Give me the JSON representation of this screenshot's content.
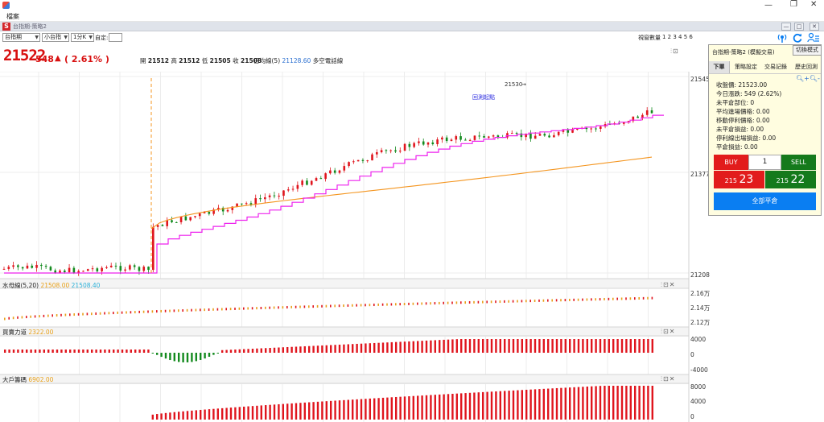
{
  "window": {
    "menu_label": "檔案"
  },
  "inner_window": {
    "title": "台指期-策略2"
  },
  "toolbar": {
    "symbol": "台指期",
    "contract": "小台指",
    "period": "1分K",
    "custom_label": "自定:",
    "custom_value": "",
    "view_count_label": "視窗數量",
    "view_counts": "1 2 3 4 5 6"
  },
  "quote": {
    "price": "21522",
    "change": "548",
    "change_arrow": "▲",
    "change_pct": "( 2.61% )",
    "open_label": "開",
    "open": "21512",
    "high_label": "高",
    "high": "21512",
    "low_label": "低",
    "low": "21505",
    "close_label": "收",
    "close": "21508",
    "ma_label": "日均線(5)",
    "ma_value": "21128.60",
    "ma_extra": "多空電話線"
  },
  "main_chart": {
    "y_ticks": [
      "21545",
      "21377",
      "21208"
    ],
    "peak_label": "21530",
    "annotation": "回測起點"
  },
  "sub1": {
    "title": "水母線(5,20)",
    "v1": "21508.00",
    "v2": "21508.40",
    "y_ticks": [
      "2.16万",
      "2.14万",
      "2.12万"
    ]
  },
  "sub2": {
    "title": "買賣力道",
    "v1": "2322.00",
    "y_ticks": [
      "4000",
      "0",
      "-4000"
    ]
  },
  "sub3": {
    "title": "大戶籌碼",
    "v1": "6902.00",
    "y_ticks": [
      "8000",
      "4000",
      "0"
    ]
  },
  "panel": {
    "title": "台指期-策略2 (模擬交易)",
    "mode_button": "切換模式",
    "tabs": [
      "下單",
      "策略設定",
      "交易記錄",
      "歷史回測"
    ],
    "info": [
      "收盤價: 21523.00",
      "今日漲跌: 549 (2.62%)",
      "未平倉部位: 0",
      "平均進場價格: 0.00",
      "移動停利價格: 0.00",
      "未平倉損益: 0.00",
      "停利線出場損益: 0.00",
      "平倉損益: 0.00"
    ],
    "buy_label": "BUY",
    "sell_label": "SELL",
    "qty": "1",
    "buy_price_prefix": "215",
    "buy_price": "23",
    "sell_price_prefix": "215",
    "sell_price": "22",
    "close_all": "全部平倉"
  },
  "colors": {
    "up": "#e0151d",
    "down": "#138a1e",
    "buy": "#e21c1c",
    "sell": "#157a1c",
    "ma": "#f4951f",
    "trail": "#ee22ee",
    "accent": "#0a7ef2"
  }
}
